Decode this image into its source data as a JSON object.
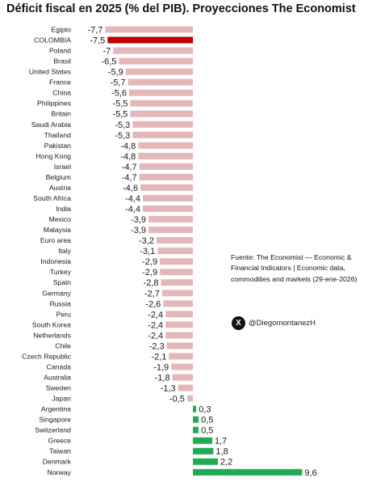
{
  "header": {
    "title": "Déficit fiscal en 2025 (% del PIB). Proyecciones The Economist"
  },
  "source": {
    "text": "Fuente: The Economist — Economic & Financial Indicators | Economic data, commodities and markets (29-ene-2026)"
  },
  "attribution": {
    "logo": "X",
    "handle": "@DiegomontanezH"
  },
  "colors": {
    "negative": "#e4b8b8",
    "highlight": "#c00000",
    "positive": "#1faa55"
  },
  "chart_data": {
    "type": "bar",
    "orientation": "horizontal",
    "title": "Déficit fiscal en 2025 (% del PIB). Proyecciones The Economist",
    "highlight": "COLOMBIA",
    "categories": [
      "Egipto",
      "COLOMBIA",
      "Poland",
      "Brasil",
      "United States",
      "France",
      "China",
      "Philippines",
      "Britain",
      "Saudi Arabia",
      "Thailand",
      "Pakistan",
      "Hong Kong",
      "Israel",
      "Belgium",
      "Austria",
      "South Africa",
      "India",
      "Mexico",
      "Malaysia",
      "Euro area",
      "Italy",
      "Indonesia",
      "Turkey",
      "Spain",
      "Germany",
      "Russia",
      "Peru",
      "South Korea",
      "Netherlands",
      "Chile",
      "Czech Republic",
      "Canada",
      "Australia",
      "Sweden",
      "Japan",
      "Argentina",
      "Singapore",
      "Switzerland",
      "Greece",
      "Taiwan",
      "Denmark",
      "Norway"
    ],
    "values": [
      -7.7,
      -7.5,
      -7.0,
      -6.5,
      -5.9,
      -5.7,
      -5.6,
      -5.5,
      -5.5,
      -5.3,
      -5.3,
      -4.8,
      -4.8,
      -4.7,
      -4.7,
      -4.6,
      -4.4,
      -4.4,
      -3.9,
      -3.9,
      -3.2,
      -3.1,
      -2.9,
      -2.9,
      -2.8,
      -2.7,
      -2.6,
      -2.4,
      -2.4,
      -2.4,
      -2.3,
      -2.1,
      -1.9,
      -1.8,
      -1.3,
      -0.5,
      0.3,
      0.5,
      0.5,
      1.7,
      1.8,
      2.2,
      9.6
    ],
    "value_labels": [
      "-7,7",
      "-7,5",
      "-7",
      "-6,5",
      "-5,9",
      "-5,7",
      "-5,6",
      "-5,5",
      "-5,5",
      "-5,3",
      "-5,3",
      "-4,8",
      "-4,8",
      "-4,7",
      "-4,7",
      "-4,6",
      "-4,4",
      "-4,4",
      "-3,9",
      "-3,9",
      "-3,2",
      "-3,1",
      "-2,9",
      "-2,9",
      "-2,8",
      "-2,7",
      "-2,6",
      "-2,4",
      "-2,4",
      "-2,4",
      "-2,3",
      "-2,1",
      "-1,9",
      "-1,8",
      "-1,3",
      "-0,5",
      "0,3",
      "0,5",
      "0,5",
      "1,7",
      "1,8",
      "2,2",
      "9,6"
    ],
    "xlim": [
      -8,
      10
    ],
    "grid": false,
    "legend": "none",
    "xlabel": "",
    "ylabel": ""
  }
}
